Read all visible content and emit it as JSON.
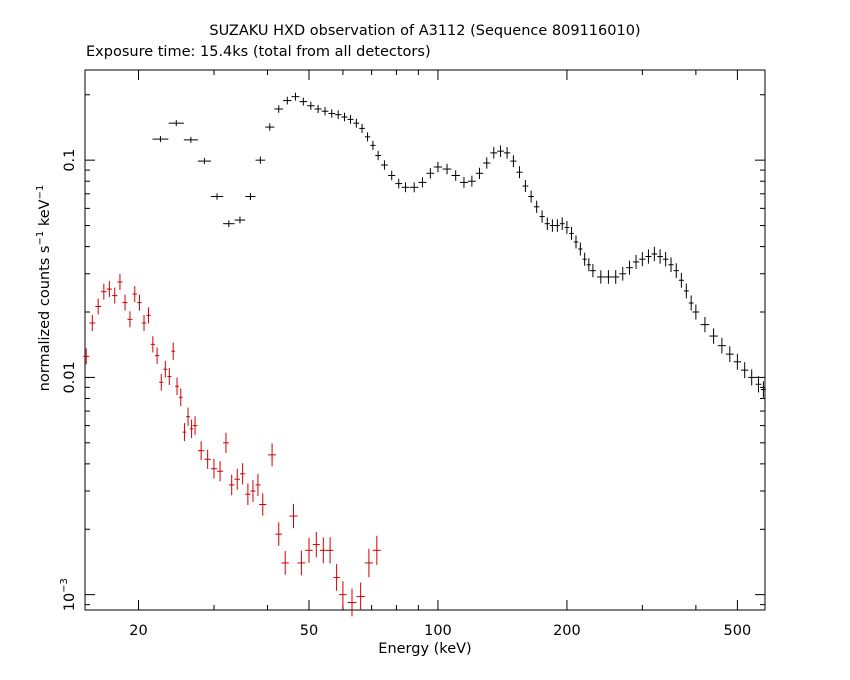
{
  "chart_data": {
    "type": "scatter",
    "title": "SUZAKU HXD observation of A3112 (Sequence 809116010)",
    "subtitle": "Exposure time: 15.4ks (total from all detectors)",
    "xlabel": "Energy (keV)",
    "ylabel": {
      "text": "normalized counts s",
      "sup1": "−1",
      "mid": " keV",
      "sup2": "−1"
    },
    "x_scale": "log",
    "y_scale": "log",
    "xlim": [
      15,
      580
    ],
    "ylim": [
      0.00085,
      0.26
    ],
    "x_ticks": [
      {
        "value": 20,
        "label": "20"
      },
      {
        "value": 50,
        "label": "50"
      },
      {
        "value": 100,
        "label": "100"
      },
      {
        "value": 200,
        "label": "200"
      },
      {
        "value": 500,
        "label": "500"
      }
    ],
    "y_ticks": [
      {
        "value": 0.1,
        "label": "0.1"
      },
      {
        "value": 0.01,
        "label": "0.01"
      },
      {
        "value": 0.001,
        "label": "10",
        "sup": "−3"
      }
    ],
    "grid": false,
    "legend": "none",
    "series": [
      {
        "color": "#000000",
        "points": [
          [
            22.5,
            0.125
          ],
          [
            24.5,
            0.148
          ],
          [
            26.5,
            0.124
          ],
          [
            28.5,
            0.099
          ],
          [
            30.5,
            0.068
          ],
          [
            32.5,
            0.051
          ],
          [
            34.5,
            0.053
          ],
          [
            36.5,
            0.068
          ],
          [
            38.5,
            0.1
          ],
          [
            40.5,
            0.142
          ],
          [
            42.5,
            0.172
          ],
          [
            44.5,
            0.188
          ],
          [
            46.5,
            0.196
          ],
          [
            48.5,
            0.186
          ],
          [
            50.5,
            0.178
          ],
          [
            52.5,
            0.172
          ],
          [
            54.5,
            0.168
          ],
          [
            56.5,
            0.164
          ],
          [
            58.5,
            0.162
          ],
          [
            60.5,
            0.158
          ],
          [
            62.5,
            0.154
          ],
          [
            64.5,
            0.148
          ],
          [
            66.5,
            0.14
          ],
          [
            68.5,
            0.128
          ],
          [
            70.5,
            0.117
          ],
          [
            72.5,
            0.105
          ],
          [
            75,
            0.095
          ],
          [
            78,
            0.085
          ],
          [
            81,
            0.078
          ],
          [
            84,
            0.075
          ],
          [
            88,
            0.075
          ],
          [
            92,
            0.079
          ],
          [
            96,
            0.087
          ],
          [
            100,
            0.093
          ],
          [
            105,
            0.091
          ],
          [
            110,
            0.085
          ],
          [
            115,
            0.079
          ],
          [
            120,
            0.08
          ],
          [
            125,
            0.087
          ],
          [
            130,
            0.097
          ],
          [
            135,
            0.108
          ],
          [
            140,
            0.11
          ],
          [
            145,
            0.108
          ],
          [
            150,
            0.099
          ],
          [
            155,
            0.088
          ],
          [
            160,
            0.076
          ],
          [
            165,
            0.068
          ],
          [
            170,
            0.061
          ],
          [
            175,
            0.055
          ],
          [
            180,
            0.051
          ],
          [
            185,
            0.05
          ],
          [
            190,
            0.05
          ],
          [
            195,
            0.051
          ],
          [
            200,
            0.049
          ],
          [
            205,
            0.046
          ],
          [
            210,
            0.042
          ],
          [
            215,
            0.039
          ],
          [
            220,
            0.035
          ],
          [
            225,
            0.033
          ],
          [
            230,
            0.031
          ],
          [
            240,
            0.029
          ],
          [
            250,
            0.029
          ],
          [
            260,
            0.029
          ],
          [
            270,
            0.03
          ],
          [
            280,
            0.032
          ],
          [
            290,
            0.034
          ],
          [
            300,
            0.035
          ],
          [
            310,
            0.036
          ],
          [
            320,
            0.037
          ],
          [
            330,
            0.036
          ],
          [
            340,
            0.035
          ],
          [
            350,
            0.033
          ],
          [
            360,
            0.031
          ],
          [
            370,
            0.028
          ],
          [
            380,
            0.025
          ],
          [
            390,
            0.022
          ],
          [
            400,
            0.02
          ],
          [
            420,
            0.0175
          ],
          [
            440,
            0.0155
          ],
          [
            460,
            0.014
          ],
          [
            480,
            0.0128
          ],
          [
            500,
            0.0118
          ],
          [
            520,
            0.0108
          ],
          [
            540,
            0.01
          ],
          [
            560,
            0.0093
          ],
          [
            575,
            0.0088
          ]
        ]
      },
      {
        "color": "#cc0000",
        "points": [
          [
            15.1,
            0.0125
          ],
          [
            15.6,
            0.0178
          ],
          [
            16.1,
            0.0212
          ],
          [
            16.6,
            0.0248
          ],
          [
            17.1,
            0.0255
          ],
          [
            17.6,
            0.0238
          ],
          [
            18.1,
            0.0275
          ],
          [
            18.6,
            0.0221
          ],
          [
            19.1,
            0.0185
          ],
          [
            19.6,
            0.0242
          ],
          [
            20.1,
            0.0221
          ],
          [
            20.6,
            0.0178
          ],
          [
            21.1,
            0.0193
          ],
          [
            21.6,
            0.0142
          ],
          [
            22.1,
            0.0126
          ],
          [
            22.6,
            0.0095
          ],
          [
            23.1,
            0.0109
          ],
          [
            23.6,
            0.0101
          ],
          [
            24.1,
            0.0132
          ],
          [
            24.6,
            0.0091
          ],
          [
            25.1,
            0.0081
          ],
          [
            25.6,
            0.0056
          ],
          [
            26.1,
            0.0066
          ],
          [
            26.6,
            0.0058
          ],
          [
            27.1,
            0.006
          ],
          [
            28,
            0.0046
          ],
          [
            29,
            0.0042
          ],
          [
            30,
            0.0038
          ],
          [
            31,
            0.0037
          ],
          [
            32,
            0.005
          ],
          [
            33,
            0.0032
          ],
          [
            34,
            0.0034
          ],
          [
            35,
            0.0036
          ],
          [
            36,
            0.0029
          ],
          [
            37,
            0.003
          ],
          [
            38,
            0.0032
          ],
          [
            39,
            0.0026
          ],
          [
            41,
            0.0044
          ],
          [
            42.5,
            0.0019
          ],
          [
            44,
            0.0014
          ],
          [
            46,
            0.0023
          ],
          [
            48,
            0.0014
          ],
          [
            50,
            0.0016
          ],
          [
            52,
            0.0017
          ],
          [
            54,
            0.0016
          ],
          [
            56,
            0.0016
          ],
          [
            58,
            0.0012
          ],
          [
            60,
            0.001
          ],
          [
            63,
            0.00092
          ],
          [
            66,
            0.00098
          ],
          [
            69,
            0.0014
          ],
          [
            72,
            0.0016
          ]
        ]
      }
    ]
  }
}
